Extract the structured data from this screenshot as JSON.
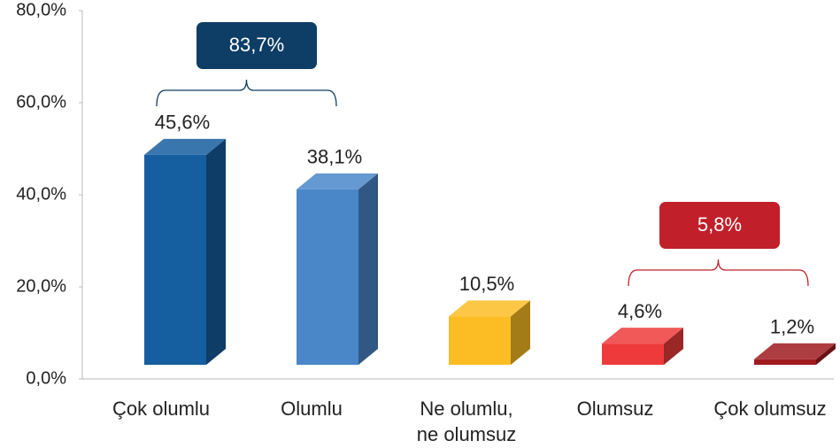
{
  "chart_data": {
    "type": "bar3d",
    "categories": [
      "Çok olumlu",
      "Olumlu",
      "Ne olumlu,\nne olumsuz",
      "Olumsuz",
      "Çok olumsuz"
    ],
    "values": [
      45.6,
      38.1,
      10.5,
      4.6,
      1.2
    ],
    "value_labels": [
      "45,6%",
      "38,1%",
      "10,5%",
      "4,6%",
      "1,2%"
    ],
    "colors": [
      "#155e9f",
      "#4a87c9",
      "#fbbd23",
      "#ee3a3a",
      "#a01b1f"
    ],
    "ylim": [
      0,
      80
    ],
    "yticks": [
      {
        "value": 0,
        "label": "0,0%"
      },
      {
        "value": 20,
        "label": "20,0%"
      },
      {
        "value": 40,
        "label": "40,0%"
      },
      {
        "value": 60,
        "label": "60,0%"
      },
      {
        "value": 80,
        "label": "80,0%"
      }
    ],
    "annotations": [
      {
        "text": "83,7%",
        "color": "#0e3d66"
      },
      {
        "text": "5,8%",
        "color": "#c1202a"
      }
    ]
  }
}
